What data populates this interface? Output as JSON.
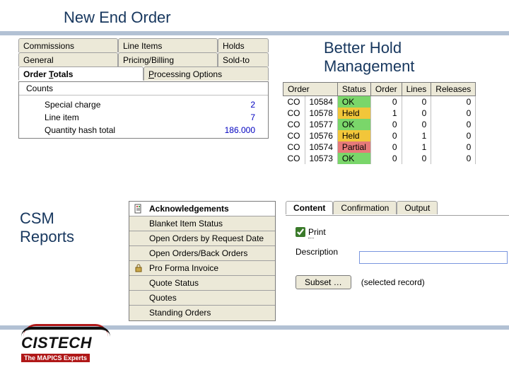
{
  "titles": {
    "main": "New End Order",
    "hold": "Better Hold\nManagement",
    "csm": "CSM\nReports"
  },
  "tabs_row1": [
    {
      "label": "Commissions"
    },
    {
      "label": "Line Items"
    },
    {
      "label": "Holds"
    }
  ],
  "tabs_row2": [
    {
      "label": "General"
    },
    {
      "label": "Pricing/Billing"
    },
    {
      "label": "Sold-to"
    }
  ],
  "tabs_row3": [
    {
      "label_pre": "Order ",
      "label_u": "T",
      "label_post": "otals",
      "active": true
    },
    {
      "label_pre": "",
      "label_u": "P",
      "label_post": "rocessing Options",
      "active": false
    }
  ],
  "counts": {
    "header": "Counts",
    "rows": [
      {
        "label": "Special charge",
        "value": "2"
      },
      {
        "label": "Line item",
        "value": "7"
      },
      {
        "label": "Quantity hash total",
        "value": "186.000"
      }
    ]
  },
  "status_headers": [
    "Order",
    "Status",
    "Order",
    "Lines",
    "Releases"
  ],
  "status_rows": [
    {
      "p": "CO",
      "id": "10584",
      "status": "OK",
      "color": "#7ad66a",
      "o": "0",
      "l": "0",
      "r": "0"
    },
    {
      "p": "CO",
      "id": "10578",
      "status": "Held",
      "color": "#f2c63a",
      "o": "1",
      "l": "0",
      "r": "0"
    },
    {
      "p": "CO",
      "id": "10577",
      "status": "OK",
      "color": "#7ad66a",
      "o": "0",
      "l": "0",
      "r": "0"
    },
    {
      "p": "CO",
      "id": "10576",
      "status": "Held",
      "color": "#f2c63a",
      "o": "0",
      "l": "1",
      "r": "0"
    },
    {
      "p": "CO",
      "id": "10574",
      "status": "Partial",
      "color": "#e77a7a",
      "o": "0",
      "l": "1",
      "r": "0"
    },
    {
      "p": "CO",
      "id": "10573",
      "status": "OK",
      "color": "#7ad66a",
      "o": "0",
      "l": "0",
      "r": "0"
    }
  ],
  "reports": [
    {
      "label": "Acknowledgements",
      "sel": true,
      "icon": "doc"
    },
    {
      "label": "Blanket Item Status",
      "sel": false,
      "icon": ""
    },
    {
      "label": "Open Orders by Request Date",
      "sel": false,
      "icon": ""
    },
    {
      "label": "Open Orders/Back Orders",
      "sel": false,
      "icon": ""
    },
    {
      "label": "Pro Forma Invoice",
      "sel": false,
      "icon": "lock"
    },
    {
      "label": "Quote Status",
      "sel": false,
      "icon": ""
    },
    {
      "label": "Quotes",
      "sel": false,
      "icon": ""
    },
    {
      "label": "Standing Orders",
      "sel": false,
      "icon": ""
    }
  ],
  "content_tabs": [
    {
      "label": "Content",
      "active": true
    },
    {
      "label": "Confirmation",
      "active": false
    },
    {
      "label": "Output",
      "active": false
    }
  ],
  "content": {
    "print_u": "P",
    "print_post": "rint",
    "desc_label": "Description",
    "subset_btn": "Subset …",
    "subset_txt": "(selected record)"
  },
  "logo": {
    "name": "CISTECH",
    "tag": "The MAPICS Experts"
  }
}
